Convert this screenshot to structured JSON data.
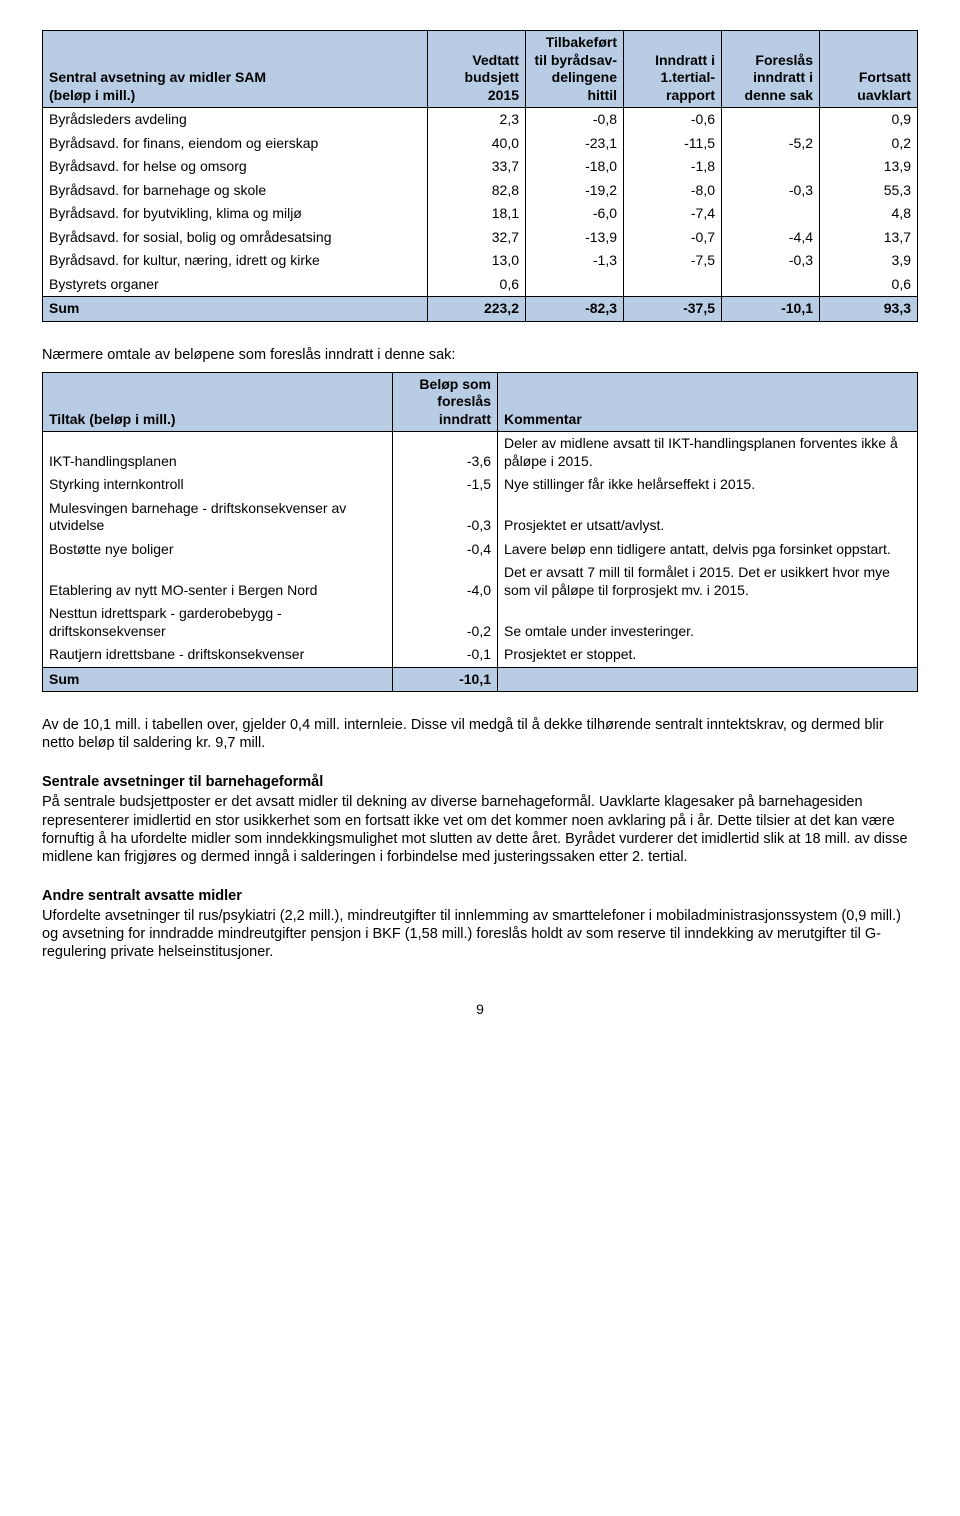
{
  "table1": {
    "headers": {
      "c0a": "Sentral avsetning av midler SAM",
      "c0b": "(beløp i  mill.)",
      "c1a": "Vedtatt",
      "c1b": "budsjett",
      "c1c": "2015",
      "c2a": "Tilbakeført",
      "c2b": "til byrådsav-",
      "c2c": "delingene",
      "c2d": "hittil",
      "c3a": "Inndratt i",
      "c3b": "1.tertial-",
      "c3c": "rapport",
      "c4a": "Foreslås",
      "c4b": "inndratt i",
      "c4c": "denne sak",
      "c5a": "Fortsatt",
      "c5b": "uavklart"
    },
    "rows": [
      {
        "label": "Byrådsleders avdeling",
        "v": [
          "2,3",
          "-0,8",
          "-0,6",
          "",
          "0,9"
        ]
      },
      {
        "label": "Byrådsavd. for finans, eiendom og eierskap",
        "v": [
          "40,0",
          "-23,1",
          "-11,5",
          "-5,2",
          "0,2"
        ]
      },
      {
        "label": "Byrådsavd. for helse og omsorg",
        "v": [
          "33,7",
          "-18,0",
          "-1,8",
          "",
          "13,9"
        ]
      },
      {
        "label": "Byrådsavd. for barnehage og skole",
        "v": [
          "82,8",
          "-19,2",
          "-8,0",
          "-0,3",
          "55,3"
        ]
      },
      {
        "label": "Byrådsavd. for byutvikling, klima og miljø",
        "v": [
          "18,1",
          "-6,0",
          "-7,4",
          "",
          "4,8"
        ]
      },
      {
        "label": "Byrådsavd. for sosial, bolig og områdesatsing",
        "v": [
          "32,7",
          "-13,9",
          "-0,7",
          "-4,4",
          "13,7"
        ]
      },
      {
        "label": "Byrådsavd. for kultur, næring, idrett og kirke",
        "v": [
          "13,0",
          "-1,3",
          "-7,5",
          "-0,3",
          "3,9"
        ]
      },
      {
        "label": "Bystyrets organer",
        "v": [
          "0,6",
          "",
          "",
          "",
          "0,6"
        ]
      }
    ],
    "sum": {
      "label": "Sum",
      "v": [
        "223,2",
        "-82,3",
        "-37,5",
        "-10,1",
        "93,3"
      ]
    }
  },
  "caption": "Nærmere omtale av beløpene som foreslås inndratt i denne sak:",
  "table2": {
    "headers": {
      "c0": "Tiltak (beløp i mill.)",
      "c1a": "Beløp som",
      "c1b": "foreslås",
      "c1c": "inndratt",
      "c2": "Kommentar"
    },
    "rows": [
      {
        "label": "IKT-handlingsplanen",
        "v": "-3,6",
        "k": "Deler av midlene avsatt til IKT-handlingsplanen forventes ikke å påløpe i 2015."
      },
      {
        "label": "Styrking internkontroll",
        "v": "-1,5",
        "k": "Nye stillinger får ikke helårseffekt i 2015."
      },
      {
        "label": "Mulesvingen barnehage - driftskonsekvenser av utvidelse",
        "v": "-0,3",
        "k": "Prosjektet er utsatt/avlyst."
      },
      {
        "label": "Bostøtte nye boliger",
        "v": "-0,4",
        "k": "Lavere beløp enn tidligere antatt, delvis pga forsinket oppstart."
      },
      {
        "label": "Etablering av nytt MO-senter i Bergen Nord",
        "v": "-4,0",
        "k": "Det er avsatt 7 mill til formålet i 2015.  Det er usikkert hvor mye som vil påløpe til forprosjekt mv. i 2015."
      },
      {
        "label": "Nesttun idrettspark - garderobebygg - driftskonsekvenser",
        "v": "-0,2",
        "k": "Se omtale under investeringer."
      },
      {
        "label": "Rautjern idrettsbane - driftskonsekvenser",
        "v": "-0,1",
        "k": "Prosjektet er stoppet."
      }
    ],
    "sum": {
      "label": "Sum",
      "v": "-10,1"
    }
  },
  "prose": {
    "p1": "Av de 10,1 mill. i tabellen over, gjelder 0,4 mill. internleie. Disse vil medgå til å dekke tilhørende sentralt inntektskrav, og dermed blir netto beløp til saldering kr. 9,7 mill.",
    "h2": "Sentrale avsetninger til barnehageformål",
    "p2": "På sentrale budsjettposter er det avsatt midler til dekning av diverse barnehageformål. Uavklarte klagesaker på barnehagesiden representerer imidlertid en stor usikkerhet som en fortsatt ikke vet om det kommer noen avklaring på i år. Dette tilsier at det kan være fornuftig å ha ufordelte midler som inndekkingsmulighet mot slutten av dette året.  Byrådet vurderer det imidlertid slik at 18 mill. av disse midlene kan frigjøres og dermed inngå i salderingen i forbindelse med justeringssaken etter 2. tertial.",
    "h3": "Andre sentralt avsatte midler",
    "p3": "Ufordelte avsetninger til rus/psykiatri (2,2 mill.), mindreutgifter til innlemming av smarttelefoner i mobiladministrasjonssystem (0,9 mill.) og avsetning for inndradde mindreutgifter pensjon i BKF (1,58 mill.) foreslås holdt av som reserve til inndekking av merutgifter til G-regulering private helseinstitusjoner."
  },
  "page_number": "9"
}
